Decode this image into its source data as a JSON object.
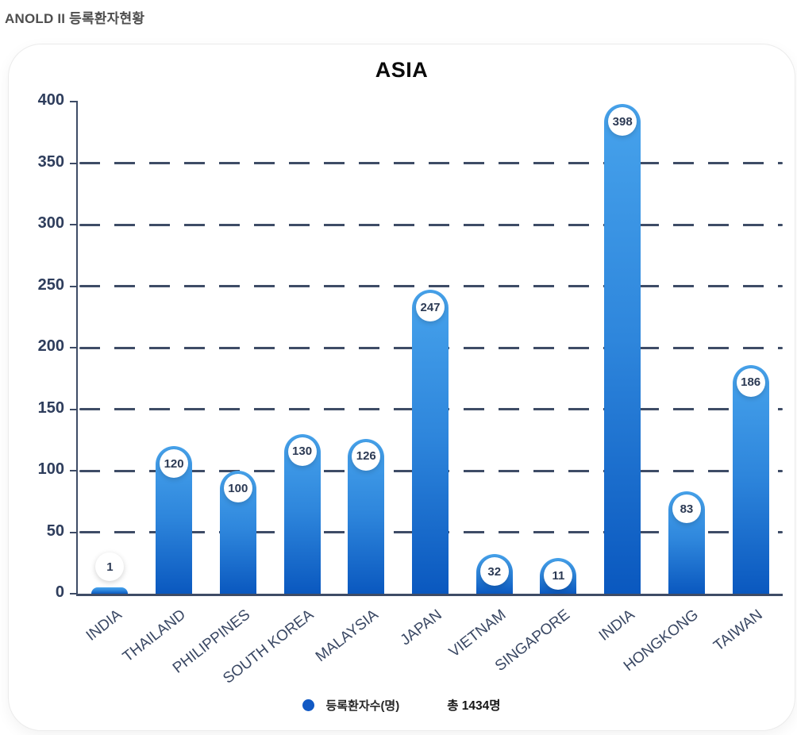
{
  "page": {
    "title": "ANOLD II 등록환자현황"
  },
  "chart_data": {
    "type": "bar",
    "title": "ASIA",
    "categories": [
      "INDIA",
      "THAILAND",
      "PHILIPPINES",
      "SOUTH KOREA",
      "MALAYSIA",
      "JAPAN",
      "VIETNAM",
      "SINGAPORE",
      "INDIA",
      "HONGKONG",
      "TAIWAN"
    ],
    "values": [
      1,
      120,
      100,
      130,
      126,
      247,
      32,
      11,
      398,
      83,
      186
    ],
    "xlabel": "",
    "ylabel": "",
    "ylim": [
      0,
      400
    ],
    "yticks": [
      0,
      50,
      100,
      150,
      200,
      250,
      300,
      350,
      400
    ],
    "gridline_values": [
      50,
      100,
      150,
      200,
      250,
      300,
      350
    ],
    "grid": "horizontal-dashed",
    "legend_position": "bottom-center",
    "legend": {
      "series_label": "등록환자수(명)",
      "total_label": "총 1434명"
    },
    "colors": {
      "bar_top": "#47a3ec",
      "bar_bottom": "#0a58bf",
      "axis": "#3e4c66",
      "tick_label": "#2e3d5c",
      "bubble_bg": "#ffffff",
      "bubble_text": "#2c3a54",
      "legend_dot": "#1159c4"
    }
  }
}
